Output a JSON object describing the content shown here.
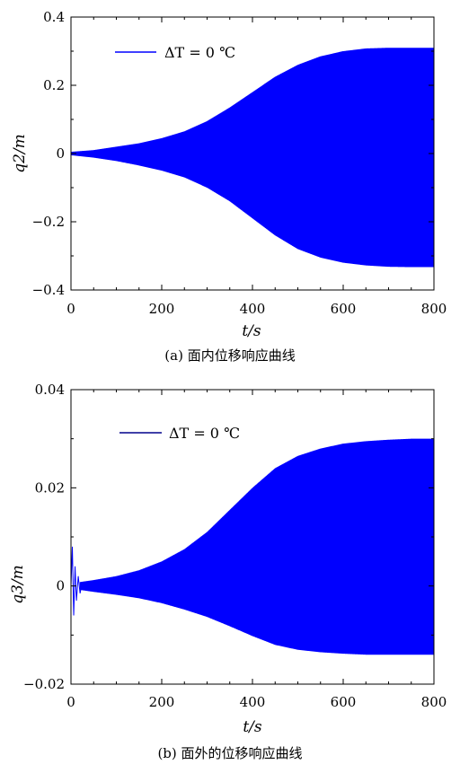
{
  "chart_data": [
    {
      "type": "line",
      "caption": "(a) 面内位移响应曲线",
      "xlabel": "t/s",
      "ylabel": "q2/m",
      "xlim": [
        0,
        800
      ],
      "ylim": [
        -0.4,
        0.4
      ],
      "xticks": [
        0,
        200,
        400,
        600,
        800
      ],
      "xtick_labels": [
        "0",
        "200",
        "400",
        "600",
        "800"
      ],
      "yticks": [
        -0.4,
        -0.2,
        0,
        0.2,
        0.4
      ],
      "ytick_labels": [
        "−0.4",
        "−0.2",
        "0",
        "0.2",
        "0.4"
      ],
      "legend": {
        "label": "ΔT = 0 ℃",
        "position": "top-left"
      },
      "series": [
        {
          "name": "ΔT = 0 ℃",
          "color": "#0000ff",
          "style": "dense-oscillation",
          "upper_envelope": {
            "t": [
              0,
              50,
              100,
              150,
              200,
              250,
              300,
              350,
              400,
              450,
              500,
              550,
              600,
              650,
              700,
              750,
              800
            ],
            "q": [
              0.005,
              0.01,
              0.02,
              0.03,
              0.045,
              0.065,
              0.095,
              0.135,
              0.18,
              0.225,
              0.26,
              0.285,
              0.3,
              0.308,
              0.31,
              0.31,
              0.31
            ]
          },
          "lower_envelope": {
            "t": [
              0,
              50,
              100,
              150,
              200,
              250,
              300,
              350,
              400,
              450,
              500,
              550,
              600,
              650,
              700,
              750,
              800
            ],
            "q": [
              -0.005,
              -0.012,
              -0.022,
              -0.035,
              -0.05,
              -0.07,
              -0.1,
              -0.14,
              -0.19,
              -0.24,
              -0.28,
              -0.305,
              -0.32,
              -0.328,
              -0.332,
              -0.333,
              -0.333
            ]
          }
        }
      ]
    },
    {
      "type": "line",
      "caption": "(b) 面外的位移响应曲线",
      "xlabel": "t/s",
      "ylabel": "q3/m",
      "xlim": [
        0,
        800
      ],
      "ylim": [
        -0.02,
        0.04
      ],
      "xticks": [
        0,
        200,
        400,
        600,
        800
      ],
      "xtick_labels": [
        "0",
        "200",
        "400",
        "600",
        "800"
      ],
      "yticks": [
        -0.02,
        0,
        0.02,
        0.04
      ],
      "ytick_labels": [
        "−0.02",
        "0",
        "0.02",
        "0.04"
      ],
      "legend": {
        "label": "ΔT = 0 ℃",
        "position": "top-left"
      },
      "series": [
        {
          "name": "ΔT = 0 ℃",
          "color": "#0000ff",
          "style": "dense-oscillation",
          "initial_transient": {
            "t": [
              0,
              3,
              6,
              9,
              12,
              16,
              20,
              25
            ],
            "q": [
              0.0,
              0.008,
              -0.006,
              0.004,
              -0.003,
              0.002,
              -0.0015,
              0.0008
            ]
          },
          "upper_envelope": {
            "t": [
              20,
              50,
              100,
              150,
              200,
              250,
              300,
              350,
              400,
              450,
              500,
              550,
              600,
              650,
              700,
              750,
              800
            ],
            "q": [
              0.0008,
              0.0012,
              0.002,
              0.0032,
              0.005,
              0.0075,
              0.011,
              0.0155,
              0.02,
              0.024,
              0.0265,
              0.028,
              0.029,
              0.0295,
              0.0298,
              0.03,
              0.03
            ]
          },
          "lower_envelope": {
            "t": [
              20,
              50,
              100,
              150,
              200,
              250,
              300,
              350,
              400,
              450,
              500,
              550,
              600,
              650,
              700,
              750,
              800
            ],
            "q": [
              -0.0008,
              -0.0012,
              -0.0018,
              -0.0025,
              -0.0035,
              -0.0048,
              -0.0063,
              -0.0082,
              -0.0102,
              -0.012,
              -0.013,
              -0.0135,
              -0.0138,
              -0.014,
              -0.014,
              -0.014,
              -0.014
            ]
          }
        }
      ]
    }
  ]
}
